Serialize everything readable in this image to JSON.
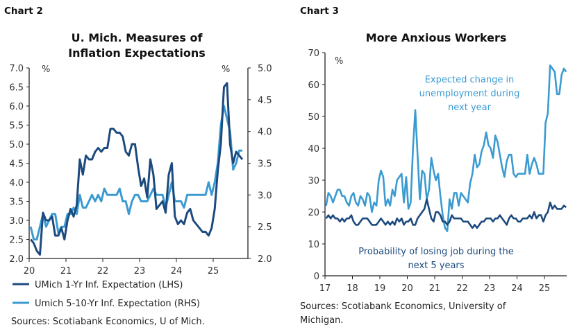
{
  "colors": {
    "dark": "#1d4a7e",
    "light": "#3b9bd1",
    "axis": "#222"
  },
  "chart_data": [
    {
      "type": "line",
      "label": "Chart 2",
      "title_lines": [
        "U. Mich. Measures of",
        "Inflation Expectations"
      ],
      "ylabel_left": "%",
      "ylabel_right": "%",
      "ylim_left": [
        2.0,
        7.0
      ],
      "ylim_right": [
        2.0,
        5.0
      ],
      "yticks_left": [
        "2.0",
        "2.5",
        "3.0",
        "3.5",
        "4.0",
        "4.5",
        "5.0",
        "5.5",
        "6.0",
        "6.5",
        "7.0"
      ],
      "yticks_right": [
        "2.0",
        "2.5",
        "3.0",
        "3.5",
        "4.0",
        "4.5",
        "5.0"
      ],
      "xticks": [
        "20",
        "21",
        "22",
        "23",
        "24",
        "25"
      ],
      "x_start": "2020-01",
      "frequency": "monthly",
      "series": [
        {
          "name": "UMich 1-Yr Inf. Expectation (LHS)",
          "axis": "left",
          "color": "#1d4a7e",
          "values": [
            2.5,
            2.4,
            2.2,
            2.1,
            3.2,
            3.0,
            3.0,
            3.1,
            2.6,
            2.6,
            2.8,
            2.5,
            3.0,
            3.3,
            3.1,
            3.4,
            4.6,
            4.2,
            4.7,
            4.6,
            4.6,
            4.8,
            4.9,
            4.8,
            4.9,
            4.9,
            5.4,
            5.4,
            5.3,
            5.3,
            5.2,
            4.8,
            4.7,
            5.0,
            5.0,
            4.4,
            3.9,
            4.1,
            3.6,
            4.6,
            4.2,
            3.3,
            3.4,
            3.5,
            3.2,
            4.2,
            4.5,
            3.1,
            2.9,
            3.0,
            2.9,
            3.2,
            3.3,
            3.0,
            2.9,
            2.8,
            2.7,
            2.7,
            2.6,
            2.8,
            3.3,
            4.3,
            5.0,
            6.5,
            6.6,
            5.0,
            4.5,
            4.8,
            4.7,
            4.6
          ]
        },
        {
          "name": "Umich 5-10-Yr Inf. Expectation (RHS)",
          "axis": "right",
          "color": "#3b9bd1",
          "values": [
            2.5,
            2.3,
            2.3,
            2.5,
            2.7,
            2.5,
            2.6,
            2.7,
            2.7,
            2.4,
            2.5,
            2.5,
            2.7,
            2.7,
            2.8,
            2.7,
            3.0,
            2.8,
            2.8,
            2.9,
            3.0,
            2.9,
            3.0,
            2.9,
            3.1,
            3.0,
            3.0,
            3.0,
            3.0,
            3.1,
            2.9,
            2.9,
            2.7,
            2.9,
            3.0,
            3.0,
            2.9,
            2.9,
            2.9,
            3.0,
            3.1,
            3.0,
            3.0,
            3.0,
            2.8,
            3.0,
            3.2,
            2.9,
            2.9,
            2.9,
            2.8,
            3.0,
            3.0,
            3.0,
            3.0,
            3.0,
            3.0,
            3.0,
            3.2,
            3.0,
            3.2,
            3.5,
            4.1,
            4.4,
            4.2,
            4.0,
            3.4,
            3.5,
            3.7,
            3.7
          ]
        }
      ],
      "legend": "bottom",
      "source": "Sources: Scotiabank Economics, U of Mich."
    },
    {
      "type": "line",
      "label": "Chart 3",
      "title_lines": [
        "More Anxious Workers"
      ],
      "ylabel": "%",
      "ylim": [
        0,
        70
      ],
      "yticks": [
        "0",
        "10",
        "20",
        "30",
        "40",
        "50",
        "60",
        "70"
      ],
      "xticks": [
        "17",
        "18",
        "19",
        "20",
        "21",
        "22",
        "23",
        "24",
        "25"
      ],
      "x_start": "2017-01",
      "frequency": "monthly",
      "series": [
        {
          "annotation_lines": [
            "Expected change in",
            "unemployment during",
            "next year"
          ],
          "color": "#3b9bd1",
          "values": [
            22,
            26,
            25,
            23,
            25,
            27,
            27,
            25,
            25,
            23,
            22,
            25,
            26,
            23,
            22,
            25,
            24,
            22,
            26,
            25,
            20,
            23,
            22,
            30,
            33,
            31,
            22,
            24,
            22,
            27,
            25,
            30,
            31,
            32,
            23,
            31,
            21,
            23,
            40,
            52,
            38,
            24,
            33,
            32,
            24,
            27,
            37,
            33,
            30,
            32,
            25,
            19,
            15,
            14,
            24,
            21,
            26,
            26,
            22,
            26,
            25,
            24,
            23,
            29,
            32,
            38,
            34,
            35,
            39,
            41,
            45,
            41,
            40,
            37,
            44,
            42,
            38,
            34,
            31,
            36,
            38,
            38,
            32,
            31,
            32,
            32,
            32,
            32,
            38,
            32,
            35,
            37,
            35,
            32,
            32,
            32,
            48,
            51,
            66,
            65,
            64,
            57,
            57,
            63,
            65,
            64
          ]
        },
        {
          "annotation_lines": [
            "Probability of losing job during the",
            "next 5 years"
          ],
          "color": "#1d4a7e",
          "values": [
            18,
            19,
            18,
            19,
            18,
            18,
            17,
            18,
            17,
            18,
            18,
            19,
            17,
            16,
            16,
            17,
            18,
            18,
            18,
            17,
            16,
            16,
            16,
            17,
            18,
            17,
            16,
            17,
            16,
            17,
            16,
            18,
            17,
            18,
            16,
            17,
            17,
            18,
            16,
            16,
            18,
            19,
            20,
            21,
            24,
            21,
            18,
            17,
            20,
            20,
            19,
            17,
            17,
            16,
            17,
            19,
            18,
            18,
            18,
            18,
            17,
            17,
            17,
            16,
            15,
            16,
            15,
            16,
            17,
            17,
            18,
            18,
            18,
            17,
            18,
            18,
            19,
            18,
            17,
            16,
            18,
            19,
            18,
            18,
            17,
            17,
            18,
            18,
            18,
            19,
            18,
            20,
            18,
            19,
            19,
            17,
            19,
            20,
            23,
            21,
            22,
            21,
            21,
            21,
            22,
            21.5
          ]
        }
      ],
      "source_lines": [
        "Sources: Scotiabank Economics, University of",
        "Michigan."
      ]
    }
  ]
}
